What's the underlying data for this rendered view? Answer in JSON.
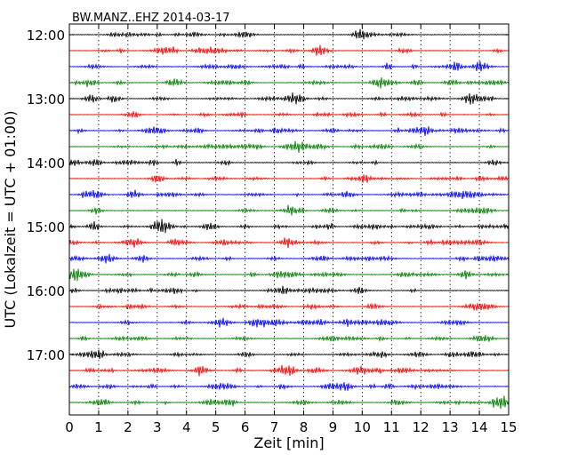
{
  "chart_data": {
    "type": "line",
    "title": "BW.MANZ..EHZ 2014-03-17",
    "xlabel": "Zeit  [min]",
    "ylabel": "UTC (Lokalzeit = UTC + 01:00)",
    "xlim": [
      0,
      15
    ],
    "x_ticks": [
      "0",
      "1",
      "2",
      "3",
      "4",
      "5",
      "6",
      "7",
      "8",
      "9",
      "10",
      "11",
      "12",
      "13",
      "14",
      "15"
    ],
    "y_ticks": [
      "12:00",
      "13:00",
      "14:00",
      "15:00",
      "16:00",
      "17:00"
    ],
    "trace_interval_minutes": 15,
    "trace_count": 24,
    "trace_colors": [
      "#000000",
      "#ff0000",
      "#0000ff",
      "#008000"
    ],
    "grid": "dotted vertical at each minute",
    "series": [
      {
        "start": "12:00"
      },
      {
        "start": "12:15"
      },
      {
        "start": "12:30"
      },
      {
        "start": "12:45"
      },
      {
        "start": "13:00"
      },
      {
        "start": "13:15"
      },
      {
        "start": "13:30"
      },
      {
        "start": "13:45"
      },
      {
        "start": "14:00"
      },
      {
        "start": "14:15"
      },
      {
        "start": "14:30"
      },
      {
        "start": "14:45"
      },
      {
        "start": "15:00"
      },
      {
        "start": "15:15"
      },
      {
        "start": "15:30"
      },
      {
        "start": "15:45"
      },
      {
        "start": "16:00"
      },
      {
        "start": "16:15"
      },
      {
        "start": "16:30"
      },
      {
        "start": "16:45"
      },
      {
        "start": "17:00"
      },
      {
        "start": "17:15"
      },
      {
        "start": "17:30"
      },
      {
        "start": "17:45"
      }
    ]
  }
}
